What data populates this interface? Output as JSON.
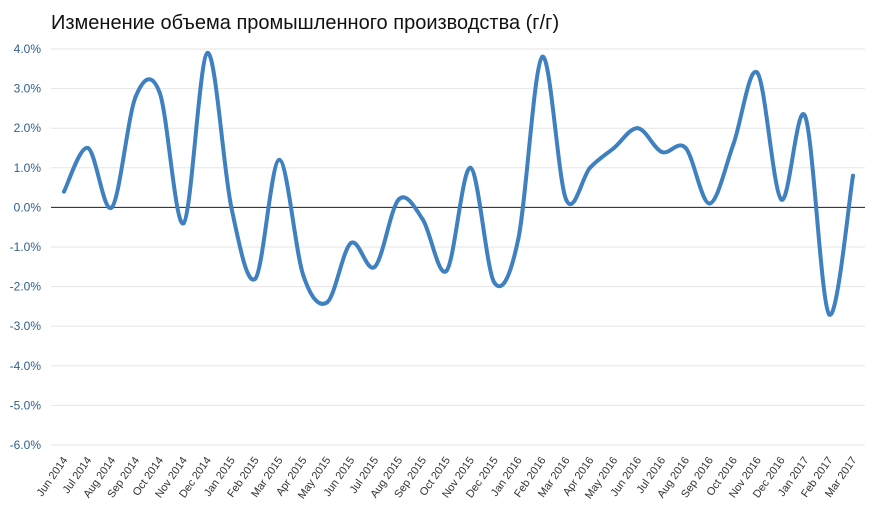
{
  "chart_data": {
    "type": "line",
    "title": "Изменение объема промышленного производства (г/г)",
    "xlabel": "",
    "ylabel": "",
    "ylim": [
      -6,
      4
    ],
    "y_ticks": [
      "4.0%",
      "3.0%",
      "2.0%",
      "1.0%",
      "0.0%",
      "-1.0%",
      "-2.0%",
      "-3.0%",
      "-4.0%",
      "-5.0%",
      "-6.0%"
    ],
    "y_tick_values": [
      4,
      3,
      2,
      1,
      0,
      -1,
      -2,
      -3,
      -4,
      -5,
      -6
    ],
    "grid": true,
    "legend": "none",
    "line_color": "#3f80c0",
    "categories": [
      "Jun 2014",
      "Jul 2014",
      "Aug 2014",
      "Sep 2014",
      "Oct 2014",
      "Nov 2014",
      "Dec 2014",
      "Jan 2015",
      "Feb 2015",
      "Mar 2015",
      "Apr 2015",
      "May 2015",
      "Jun 2015",
      "Jul 2015",
      "Aug 2015",
      "Sep 2015",
      "Oct 2015",
      "Nov 2015",
      "Dec 2015",
      "Jan 2016",
      "Feb 2016",
      "Mar 2016",
      "Apr 2016",
      "May 2016",
      "Jun 2016",
      "Jul 2016",
      "Aug 2016",
      "Sep 2016",
      "Oct 2016",
      "Nov 2016",
      "Dec 2016",
      "Jan 2017",
      "Feb 2017",
      "Mar 2017"
    ],
    "series": [
      {
        "values": [
          0.4,
          1.5,
          0.0,
          2.8,
          2.9,
          -0.4,
          3.9,
          0.0,
          -1.8,
          1.2,
          -1.7,
          -2.4,
          -0.9,
          -1.5,
          0.2,
          -0.3,
          -1.6,
          1.0,
          -1.9,
          -0.8,
          3.8,
          0.2,
          1.0,
          1.5,
          2.0,
          1.4,
          1.5,
          0.1,
          1.6,
          3.4,
          0.2,
          2.3,
          -2.7,
          0.8
        ]
      }
    ]
  }
}
